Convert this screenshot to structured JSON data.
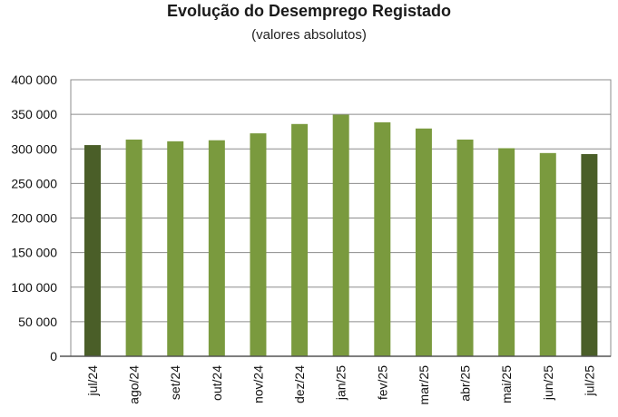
{
  "chart_data": {
    "type": "bar",
    "title": "Evolução do Desemprego Registado",
    "subtitle": "(valores absolutos)",
    "xlabel": "",
    "ylabel": "",
    "categories": [
      "jul/24",
      "ago/24",
      "set/24",
      "out/24",
      "nov/24",
      "dez/24",
      "jan/25",
      "fev/25",
      "mar/25",
      "abr/25",
      "mai/25",
      "jun/25",
      "jul/25"
    ],
    "values": [
      305500,
      313500,
      311000,
      312500,
      322500,
      336000,
      349500,
      338500,
      329500,
      313500,
      301000,
      294000,
      292500
    ],
    "highlighted": [
      "jul/24",
      "jul/25"
    ],
    "ylim": [
      0,
      400000
    ],
    "yticks": [
      0,
      50000,
      100000,
      150000,
      200000,
      250000,
      300000,
      350000,
      400000
    ],
    "ytick_labels": [
      "0",
      "50 000",
      "100 000",
      "150 000",
      "200 000",
      "250 000",
      "300 000",
      "350 000",
      "400 000"
    ],
    "grid": true,
    "colors": {
      "bar": "#7a9a3e",
      "highlight": "#4a5e28",
      "grid": "#8c8c8c",
      "axis": "#555555"
    }
  }
}
